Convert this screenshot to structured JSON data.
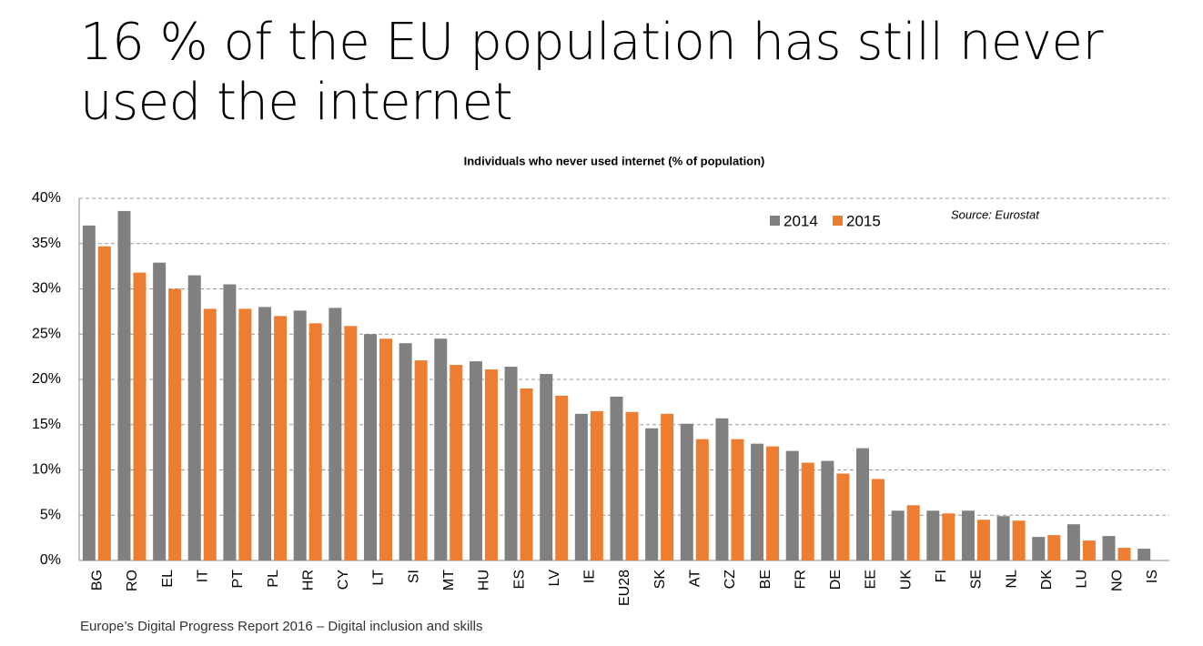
{
  "title": "16 % of the EU population has still never used the internet",
  "footer": "Europe’s Digital Progress Report 2016 – Digital inclusion and skills",
  "chart_data": {
    "type": "bar",
    "title": "Individuals who never used internet (% of population)",
    "annotation": "Source: Eurostat",
    "categories": [
      "BG",
      "RO",
      "EL",
      "IT",
      "PT",
      "PL",
      "HR",
      "CY",
      "LT",
      "SI",
      "MT",
      "HU",
      "ES",
      "LV",
      "IE",
      "EU28",
      "SK",
      "AT",
      "CZ",
      "BE",
      "FR",
      "DE",
      "EE",
      "UK",
      "FI",
      "SE",
      "NL",
      "DK",
      "LU",
      "NO",
      "IS"
    ],
    "series": [
      {
        "name": "2014",
        "color": "#808080",
        "values": [
          37.0,
          38.6,
          32.9,
          31.5,
          30.5,
          28.0,
          27.6,
          27.9,
          25.0,
          24.0,
          24.5,
          22.0,
          21.4,
          20.6,
          16.2,
          18.1,
          14.6,
          15.1,
          15.7,
          12.9,
          12.1,
          11.0,
          12.4,
          5.5,
          5.5,
          5.5,
          4.9,
          2.6,
          4.0,
          2.7,
          1.3
        ]
      },
      {
        "name": "2015",
        "color": "#ed7d31",
        "values": [
          34.7,
          31.8,
          30.0,
          27.8,
          27.8,
          27.0,
          26.2,
          25.9,
          24.5,
          22.1,
          21.6,
          21.1,
          19.0,
          18.2,
          16.5,
          16.4,
          16.2,
          13.4,
          13.4,
          12.6,
          10.8,
          9.6,
          9.0,
          6.1,
          5.2,
          4.5,
          4.4,
          2.8,
          2.2,
          1.4,
          null
        ]
      }
    ],
    "ylim": [
      0,
      40
    ],
    "yticks": [
      {
        "value": 0,
        "label": "0%"
      },
      {
        "value": 5,
        "label": "5%"
      },
      {
        "value": 10,
        "label": "10%"
      },
      {
        "value": 15,
        "label": "15%"
      },
      {
        "value": 20,
        "label": "20%"
      },
      {
        "value": 25,
        "label": "25%"
      },
      {
        "value": 30,
        "label": "30%"
      },
      {
        "value": 35,
        "label": "35%"
      },
      {
        "value": 40,
        "label": "40%"
      }
    ],
    "grid": true,
    "legend": "top"
  }
}
